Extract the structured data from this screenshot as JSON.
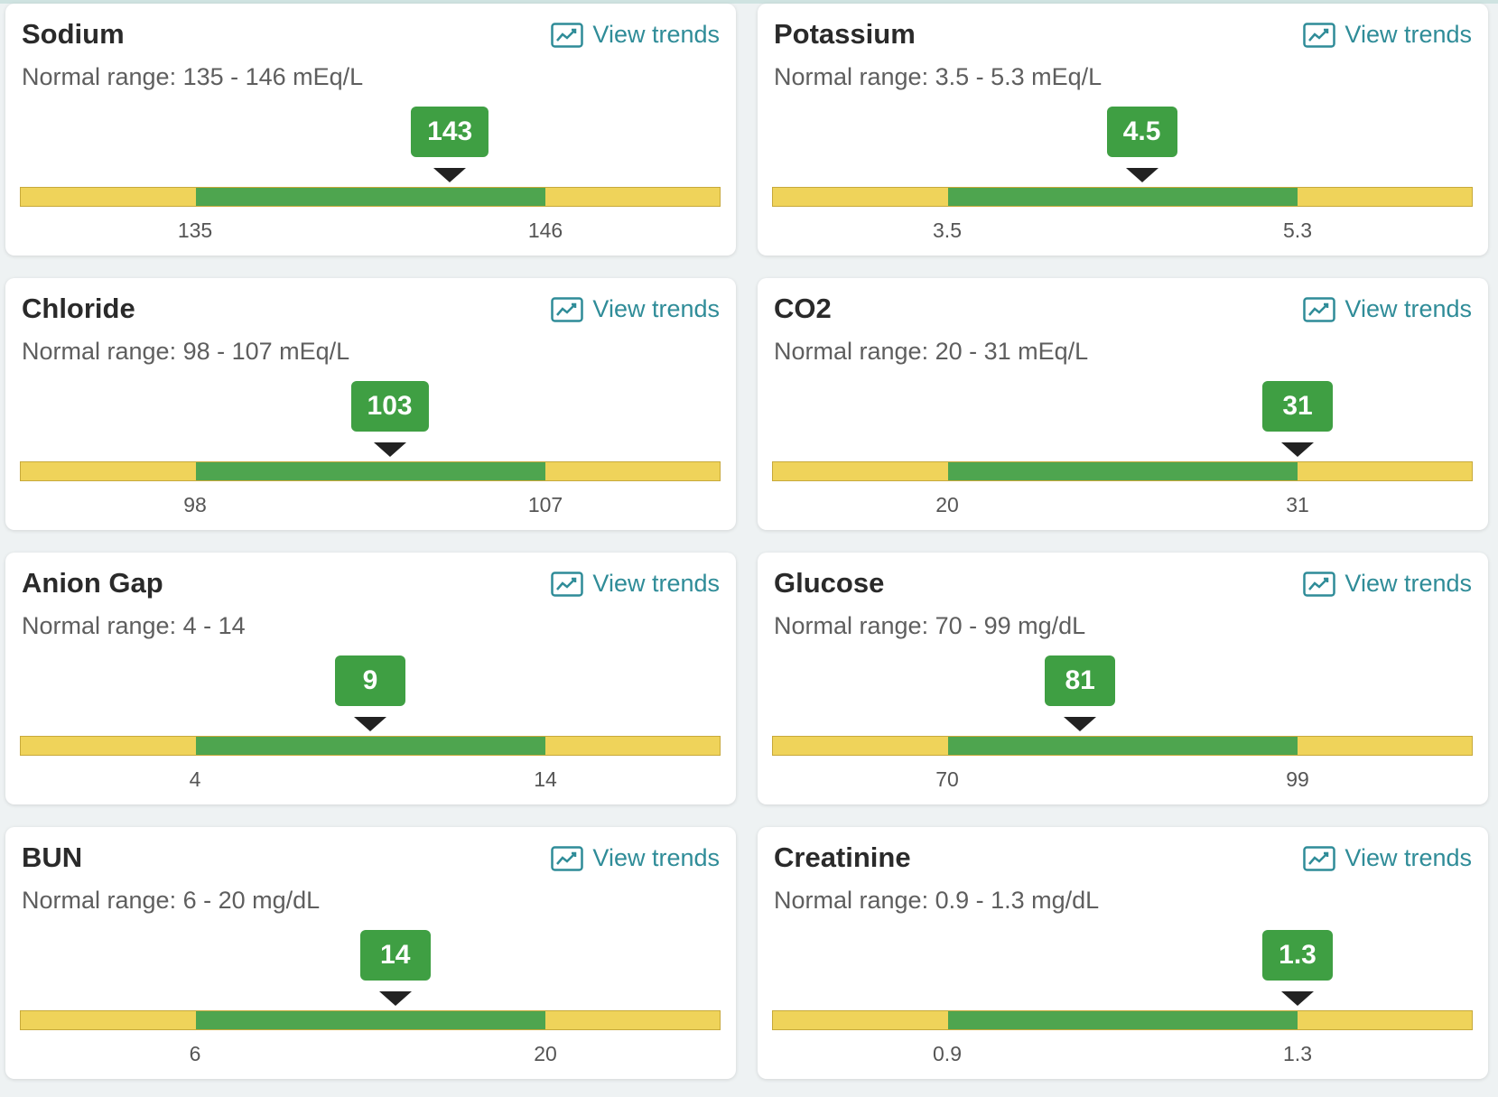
{
  "common": {
    "view_trends_label": "View trends"
  },
  "colors": {
    "normal": "#4ea54f",
    "borderline": "#efd35a",
    "badge": "#3f9f43",
    "link": "#2f8c98"
  },
  "tests": [
    {
      "name": "Sodium",
      "range_text": "Normal range: 135 - 146 mEq/L",
      "value": "143",
      "low": "135",
      "high": "146",
      "value_num": 143,
      "low_num": 135,
      "high_num": 146
    },
    {
      "name": "Potassium",
      "range_text": "Normal range: 3.5 - 5.3 mEq/L",
      "value": "4.5",
      "low": "3.5",
      "high": "5.3",
      "value_num": 4.5,
      "low_num": 3.5,
      "high_num": 5.3
    },
    {
      "name": "Chloride",
      "range_text": "Normal range: 98 - 107 mEq/L",
      "value": "103",
      "low": "98",
      "high": "107",
      "value_num": 103,
      "low_num": 98,
      "high_num": 107
    },
    {
      "name": "CO2",
      "range_text": "Normal range: 20 - 31 mEq/L",
      "value": "31",
      "low": "20",
      "high": "31",
      "value_num": 31,
      "low_num": 20,
      "high_num": 31
    },
    {
      "name": "Anion Gap",
      "range_text": "Normal range: 4 - 14",
      "value": "9",
      "low": "4",
      "high": "14",
      "value_num": 9,
      "low_num": 4,
      "high_num": 14
    },
    {
      "name": "Glucose",
      "range_text": "Normal range: 70 - 99 mg/dL",
      "value": "81",
      "low": "70",
      "high": "99",
      "value_num": 81,
      "low_num": 70,
      "high_num": 99
    },
    {
      "name": "BUN",
      "range_text": "Normal range: 6 - 20 mg/dL",
      "value": "14",
      "low": "6",
      "high": "20",
      "value_num": 14,
      "low_num": 6,
      "high_num": 20
    },
    {
      "name": "Creatinine",
      "range_text": "Normal range: 0.9 - 1.3 mg/dL",
      "value": "1.3",
      "low": "0.9",
      "high": "1.3",
      "value_num": 1.3,
      "low_num": 0.9,
      "high_num": 1.3
    }
  ]
}
